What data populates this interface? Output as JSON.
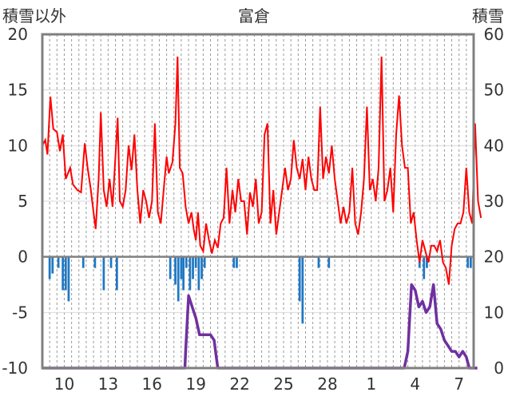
{
  "chart_data": {
    "type": "line",
    "title": "富倉",
    "left_axis_label": "積雪以外",
    "right_axis_label": "積雪",
    "left_axis": {
      "min": -10,
      "max": 20,
      "ticks": [
        20,
        15,
        10,
        5,
        0,
        -5,
        -10
      ]
    },
    "right_axis": {
      "min": 0,
      "max": 60,
      "ticks": [
        60,
        50,
        40,
        30,
        20,
        10,
        0
      ]
    },
    "x_axis": {
      "min": 0,
      "max": 59,
      "tick_labels": [
        {
          "x": 3,
          "label": "10"
        },
        {
          "x": 9,
          "label": "13"
        },
        {
          "x": 15,
          "label": "16"
        },
        {
          "x": 21,
          "label": "19"
        },
        {
          "x": 27,
          "label": "22"
        },
        {
          "x": 33,
          "label": "25"
        },
        {
          "x": 39,
          "label": "28"
        },
        {
          "x": 45,
          "label": "1"
        },
        {
          "x": 51,
          "label": "4"
        },
        {
          "x": 57,
          "label": "7"
        }
      ],
      "grid_every": 1
    },
    "grid": true,
    "colors": {
      "temperature": "#ff0000",
      "precipitation": "#1f77c4",
      "snow_depth": "#7030a0",
      "zero_line": "#808080",
      "frame": "#808080"
    },
    "series": [
      {
        "type": "line",
        "axis": "left",
        "color": "#ff0000",
        "points": [
          [
            0,
            10
          ],
          [
            0.4,
            10.5
          ],
          [
            0.7,
            9.2
          ],
          [
            1.1,
            14.4
          ],
          [
            1.5,
            11.5
          ],
          [
            2.0,
            11.2
          ],
          [
            2.4,
            9.5
          ],
          [
            2.8,
            11
          ],
          [
            3.2,
            7
          ],
          [
            3.8,
            8
          ],
          [
            4.2,
            6.5
          ],
          [
            4.8,
            6
          ],
          [
            5.3,
            5.8
          ],
          [
            5.8,
            10.2
          ],
          [
            6.2,
            8
          ],
          [
            6.6,
            6.2
          ],
          [
            7.0,
            4
          ],
          [
            7.3,
            2.5
          ],
          [
            7.7,
            7
          ],
          [
            8.0,
            13
          ],
          [
            8.4,
            6
          ],
          [
            8.8,
            4.5
          ],
          [
            9.2,
            7
          ],
          [
            9.6,
            4.5
          ],
          [
            10.0,
            9
          ],
          [
            10.3,
            12.5
          ],
          [
            10.6,
            5
          ],
          [
            11.0,
            4.5
          ],
          [
            11.4,
            6
          ],
          [
            11.8,
            10
          ],
          [
            12.2,
            7.8
          ],
          [
            12.6,
            11
          ],
          [
            13.0,
            6
          ],
          [
            13.4,
            3
          ],
          [
            13.8,
            6
          ],
          [
            14.2,
            5
          ],
          [
            14.6,
            3.5
          ],
          [
            15.0,
            5
          ],
          [
            15.4,
            12
          ],
          [
            15.8,
            4
          ],
          [
            16.2,
            3
          ],
          [
            16.6,
            6
          ],
          [
            17.0,
            9
          ],
          [
            17.3,
            7.5
          ],
          [
            17.8,
            8.5
          ],
          [
            18.2,
            12
          ],
          [
            18.5,
            18
          ],
          [
            18.8,
            8
          ],
          [
            19.2,
            7.5
          ],
          [
            19.6,
            4.5
          ],
          [
            20.0,
            3
          ],
          [
            20.4,
            4
          ],
          [
            20.7,
            2.5
          ],
          [
            21.0,
            1.5
          ],
          [
            21.3,
            4
          ],
          [
            21.6,
            1
          ],
          [
            22.0,
            0.5
          ],
          [
            22.4,
            3
          ],
          [
            22.8,
            1.5
          ],
          [
            23.2,
            0.3
          ],
          [
            23.6,
            1.5
          ],
          [
            24.0,
            0.8
          ],
          [
            24.4,
            3
          ],
          [
            24.8,
            3.5
          ],
          [
            25.2,
            8
          ],
          [
            25.6,
            3
          ],
          [
            26.0,
            6
          ],
          [
            26.4,
            4
          ],
          [
            26.8,
            7
          ],
          [
            27.2,
            5
          ],
          [
            27.6,
            5
          ],
          [
            28.0,
            2
          ],
          [
            28.4,
            5.8
          ],
          [
            28.8,
            4.5
          ],
          [
            29.2,
            7
          ],
          [
            29.6,
            3
          ],
          [
            30.0,
            4
          ],
          [
            30.4,
            11
          ],
          [
            30.8,
            12
          ],
          [
            31.2,
            3
          ],
          [
            31.6,
            6
          ],
          [
            32.0,
            2
          ],
          [
            32.4,
            4
          ],
          [
            32.8,
            6
          ],
          [
            33.2,
            8
          ],
          [
            33.6,
            6
          ],
          [
            34.0,
            7
          ],
          [
            34.4,
            10.5
          ],
          [
            34.8,
            8
          ],
          [
            35.2,
            7
          ],
          [
            35.6,
            8.8
          ],
          [
            36.0,
            6
          ],
          [
            36.4,
            9
          ],
          [
            36.8,
            7
          ],
          [
            37.2,
            6
          ],
          [
            37.6,
            6
          ],
          [
            38.0,
            13.5
          ],
          [
            38.4,
            7
          ],
          [
            38.8,
            9
          ],
          [
            39.2,
            7.5
          ],
          [
            39.6,
            10
          ],
          [
            40.0,
            7
          ],
          [
            40.4,
            5
          ],
          [
            40.8,
            3
          ],
          [
            41.2,
            4.5
          ],
          [
            41.6,
            3
          ],
          [
            42.0,
            4
          ],
          [
            42.4,
            8
          ],
          [
            42.8,
            3
          ],
          [
            43.2,
            2
          ],
          [
            43.6,
            4
          ],
          [
            44.0,
            7
          ],
          [
            44.4,
            13.5
          ],
          [
            44.8,
            6
          ],
          [
            45.2,
            7
          ],
          [
            45.6,
            5
          ],
          [
            46.0,
            8
          ],
          [
            46.4,
            18
          ],
          [
            46.8,
            5
          ],
          [
            47.2,
            6
          ],
          [
            47.6,
            8
          ],
          [
            48.0,
            4
          ],
          [
            48.4,
            11
          ],
          [
            48.8,
            14.5
          ],
          [
            49.2,
            10
          ],
          [
            49.6,
            8
          ],
          [
            50.0,
            8
          ],
          [
            50.4,
            3
          ],
          [
            50.8,
            4
          ],
          [
            51.2,
            1.5
          ],
          [
            51.6,
            -0.5
          ],
          [
            52.0,
            1.5
          ],
          [
            52.4,
            0.5
          ],
          [
            52.8,
            -0.5
          ],
          [
            53.2,
            1
          ],
          [
            53.6,
            1
          ],
          [
            54.0,
            0.5
          ],
          [
            54.4,
            1.5
          ],
          [
            54.8,
            -0.5
          ],
          [
            55.2,
            -1
          ],
          [
            55.6,
            -2.5
          ],
          [
            56.0,
            1
          ],
          [
            56.4,
            2.5
          ],
          [
            56.8,
            3
          ],
          [
            57.2,
            3
          ],
          [
            57.6,
            4
          ],
          [
            58.0,
            8
          ],
          [
            58.4,
            4
          ],
          [
            58.8,
            3
          ],
          [
            59.2,
            12
          ],
          [
            59.6,
            5
          ],
          [
            60.0,
            3.5
          ]
        ]
      },
      {
        "type": "bar",
        "axis": "left",
        "color": "#1f77c4",
        "bars": [
          [
            1.0,
            -2
          ],
          [
            1.4,
            -1.5
          ],
          [
            2.2,
            -1
          ],
          [
            2.8,
            -3
          ],
          [
            3.2,
            -3
          ],
          [
            3.6,
            -4
          ],
          [
            5.6,
            -1
          ],
          [
            7.2,
            -1
          ],
          [
            8.4,
            -3
          ],
          [
            9.4,
            -1
          ],
          [
            10.2,
            -3
          ],
          [
            17.5,
            -2
          ],
          [
            18.2,
            -2.5
          ],
          [
            18.6,
            -4
          ],
          [
            19.0,
            -2
          ],
          [
            19.3,
            -3
          ],
          [
            19.7,
            -1
          ],
          [
            20.2,
            -3
          ],
          [
            20.6,
            -2
          ],
          [
            21.0,
            -1
          ],
          [
            21.4,
            -3
          ],
          [
            21.8,
            -2
          ],
          [
            22.2,
            -1
          ],
          [
            26.2,
            -1
          ],
          [
            26.6,
            -1
          ],
          [
            35.2,
            -4
          ],
          [
            35.6,
            -6
          ],
          [
            37.8,
            -1
          ],
          [
            39.2,
            -1
          ],
          [
            51.6,
            -1
          ],
          [
            52.2,
            -2
          ],
          [
            52.6,
            -1
          ],
          [
            58.2,
            -1
          ],
          [
            58.6,
            -1
          ]
        ]
      },
      {
        "type": "line",
        "axis": "right",
        "color": "#7030a0",
        "points": [
          [
            0,
            0
          ],
          [
            19.5,
            0
          ],
          [
            19.6,
            3
          ],
          [
            20.0,
            13
          ],
          [
            20.5,
            11
          ],
          [
            21.0,
            9
          ],
          [
            21.5,
            6
          ],
          [
            22.0,
            6
          ],
          [
            22.5,
            6
          ],
          [
            23.0,
            6
          ],
          [
            23.5,
            5
          ],
          [
            23.8,
            2
          ],
          [
            24.0,
            0
          ],
          [
            49.5,
            0
          ],
          [
            50.0,
            3
          ],
          [
            50.5,
            15
          ],
          [
            51.0,
            14
          ],
          [
            51.5,
            11
          ],
          [
            52.0,
            12
          ],
          [
            52.5,
            10
          ],
          [
            53.0,
            11
          ],
          [
            53.5,
            15
          ],
          [
            54.0,
            8
          ],
          [
            54.5,
            7
          ],
          [
            55.0,
            5
          ],
          [
            55.5,
            4
          ],
          [
            56.0,
            3
          ],
          [
            56.5,
            3
          ],
          [
            57.0,
            2
          ],
          [
            57.5,
            3
          ],
          [
            58.0,
            2
          ],
          [
            58.4,
            0
          ],
          [
            59.5,
            0
          ]
        ]
      }
    ]
  }
}
